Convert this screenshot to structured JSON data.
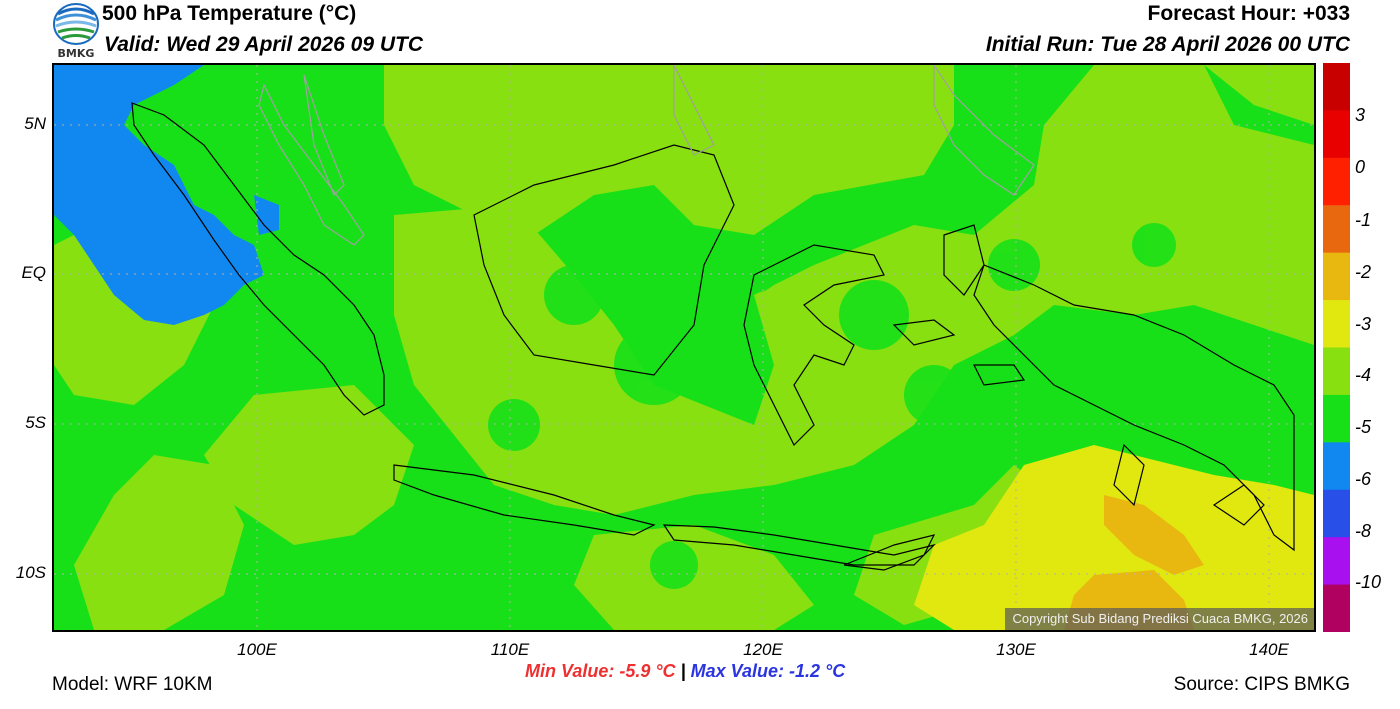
{
  "header": {
    "title": "500 hPa Temperature (°C)",
    "valid": "Valid: Wed 29 April 2026 09 UTC",
    "forecast_hour": "Forecast Hour: +033",
    "initial_run": "Initial Run: Tue 28 April 2026 00 UTC"
  },
  "logo": {
    "text": "BMKG",
    "icon": "bmkg-logo-icon"
  },
  "map": {
    "lat_labels": [
      "5N",
      "EQ",
      "5S",
      "10S"
    ],
    "lon_labels": [
      "100E",
      "110E",
      "120E",
      "130E",
      "140E"
    ],
    "copyright": "Copyright Sub Bidang Prediksi Cuaca BMKG, 2026"
  },
  "colorbar": {
    "labels": [
      "3",
      "0",
      "-1",
      "-2",
      "-3",
      "-4",
      "-5",
      "-6",
      "-8",
      "-10"
    ],
    "colors": [
      "#c80000",
      "#e80000",
      "#ff2000",
      "#e86810",
      "#e8b810",
      "#e0e810",
      "#88e010",
      "#18e018",
      "#1088f0",
      "#2850e8",
      "#a810f0",
      "#b00060"
    ]
  },
  "stats": {
    "min": "Min Value: -5.9 °C",
    "separator": "|",
    "max": "Max Value: -1.2 °C"
  },
  "footer": {
    "model": "Model: WRF 10KM",
    "source": "Source: CIPS BMKG"
  }
}
